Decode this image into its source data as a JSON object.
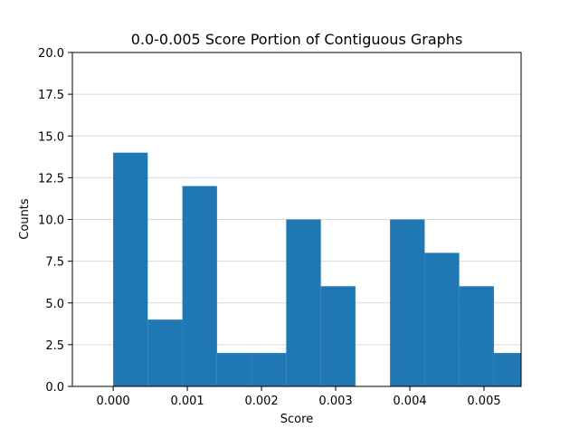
{
  "chart_data": {
    "type": "bar",
    "title": "0.0-0.005 Score Portion of Contiguous Graphs",
    "xlabel": "Score",
    "ylabel": "Counts",
    "xlim": [
      -0.00055,
      0.0055
    ],
    "ylim": [
      0,
      20
    ],
    "xticks": [
      "0.000",
      "0.001",
      "0.002",
      "0.003",
      "0.004",
      "0.005"
    ],
    "xtick_values": [
      0.0,
      0.001,
      0.002,
      0.003,
      0.004,
      0.005
    ],
    "yticks": [
      "0.0",
      "2.5",
      "5.0",
      "7.5",
      "10.0",
      "12.5",
      "15.0",
      "17.5",
      "20.0"
    ],
    "ytick_values": [
      0,
      2.5,
      5,
      7.5,
      10,
      12.5,
      15,
      17.5,
      20
    ],
    "grid": "horizontal",
    "bar_color": "#1f77b4",
    "bins": [
      {
        "x0": 0.0,
        "x1": 0.000466,
        "count": 14
      },
      {
        "x0": 0.000466,
        "x1": 0.000933,
        "count": 4
      },
      {
        "x0": 0.000933,
        "x1": 0.0014,
        "count": 12
      },
      {
        "x0": 0.0014,
        "x1": 0.001866,
        "count": 2
      },
      {
        "x0": 0.001866,
        "x1": 0.002333,
        "count": 2
      },
      {
        "x0": 0.002333,
        "x1": 0.0028,
        "count": 10
      },
      {
        "x0": 0.0028,
        "x1": 0.003266,
        "count": 6
      },
      {
        "x0": 0.003266,
        "x1": 0.003733,
        "count": 0
      },
      {
        "x0": 0.003733,
        "x1": 0.0042,
        "count": 10
      },
      {
        "x0": 0.0042,
        "x1": 0.004666,
        "count": 8
      },
      {
        "x0": 0.004666,
        "x1": 0.005133,
        "count": 6
      },
      {
        "x0": 0.005133,
        "x1": 0.0056,
        "count": 2
      }
    ]
  }
}
